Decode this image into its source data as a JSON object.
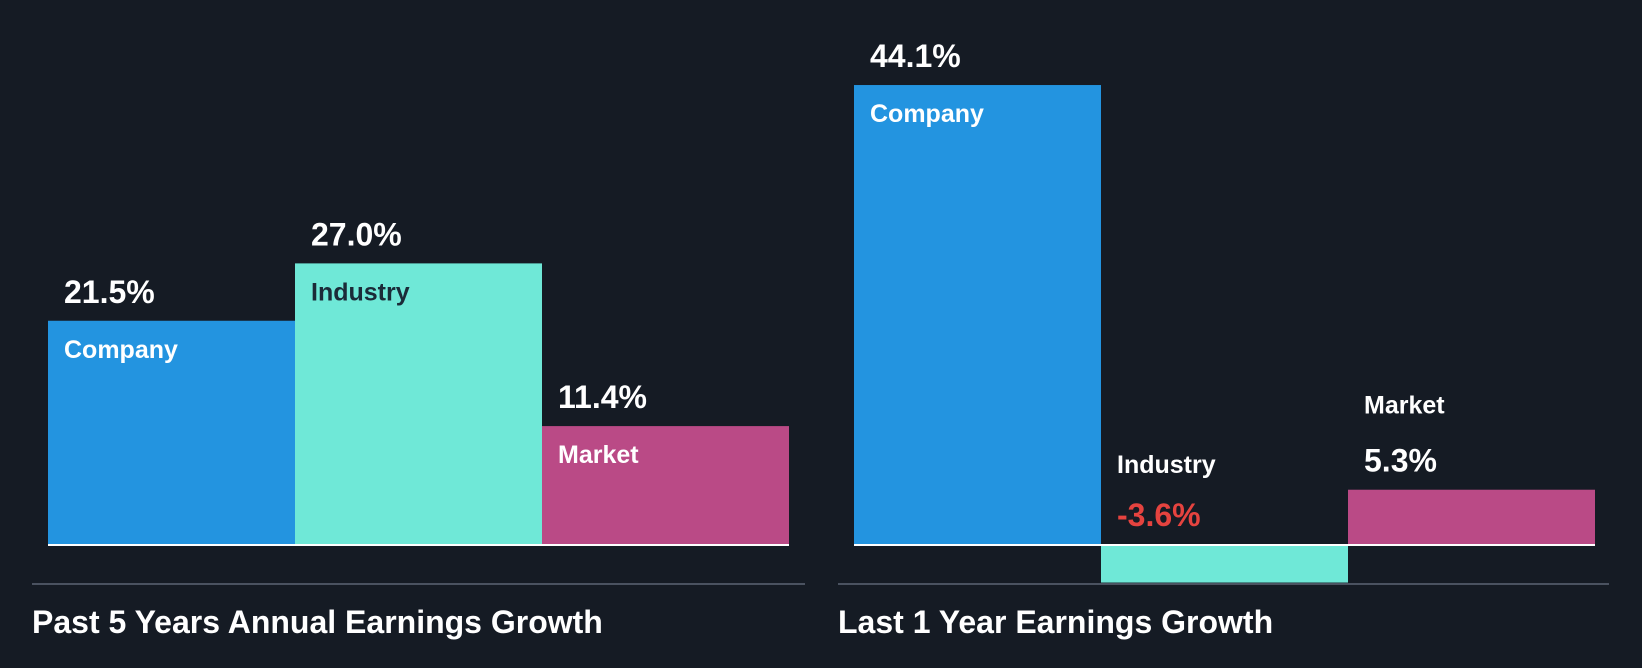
{
  "colors": {
    "background": "#151b24",
    "company": "#2394e0",
    "industry": "#6fe8d7",
    "market": "#ba4a86",
    "text_light": "#ffffff",
    "text_dark": "#1b2b38",
    "negative": "#e5433f",
    "divider": "#4a5260",
    "baseline": "#ffffff"
  },
  "chart_data": [
    {
      "type": "bar",
      "title": "Past 5 Years Annual Earnings Growth",
      "categories": [
        "Company",
        "Industry",
        "Market"
      ],
      "values": [
        21.5,
        27.0,
        11.4
      ],
      "value_labels": [
        "21.5%",
        "27.0%",
        "11.4%"
      ],
      "unit": "%"
    },
    {
      "type": "bar",
      "title": "Last 1 Year Earnings Growth",
      "categories": [
        "Company",
        "Industry",
        "Market"
      ],
      "values": [
        44.1,
        -3.6,
        5.3
      ],
      "value_labels": [
        "44.1%",
        "-3.6%",
        "5.3%"
      ],
      "unit": "%"
    }
  ]
}
